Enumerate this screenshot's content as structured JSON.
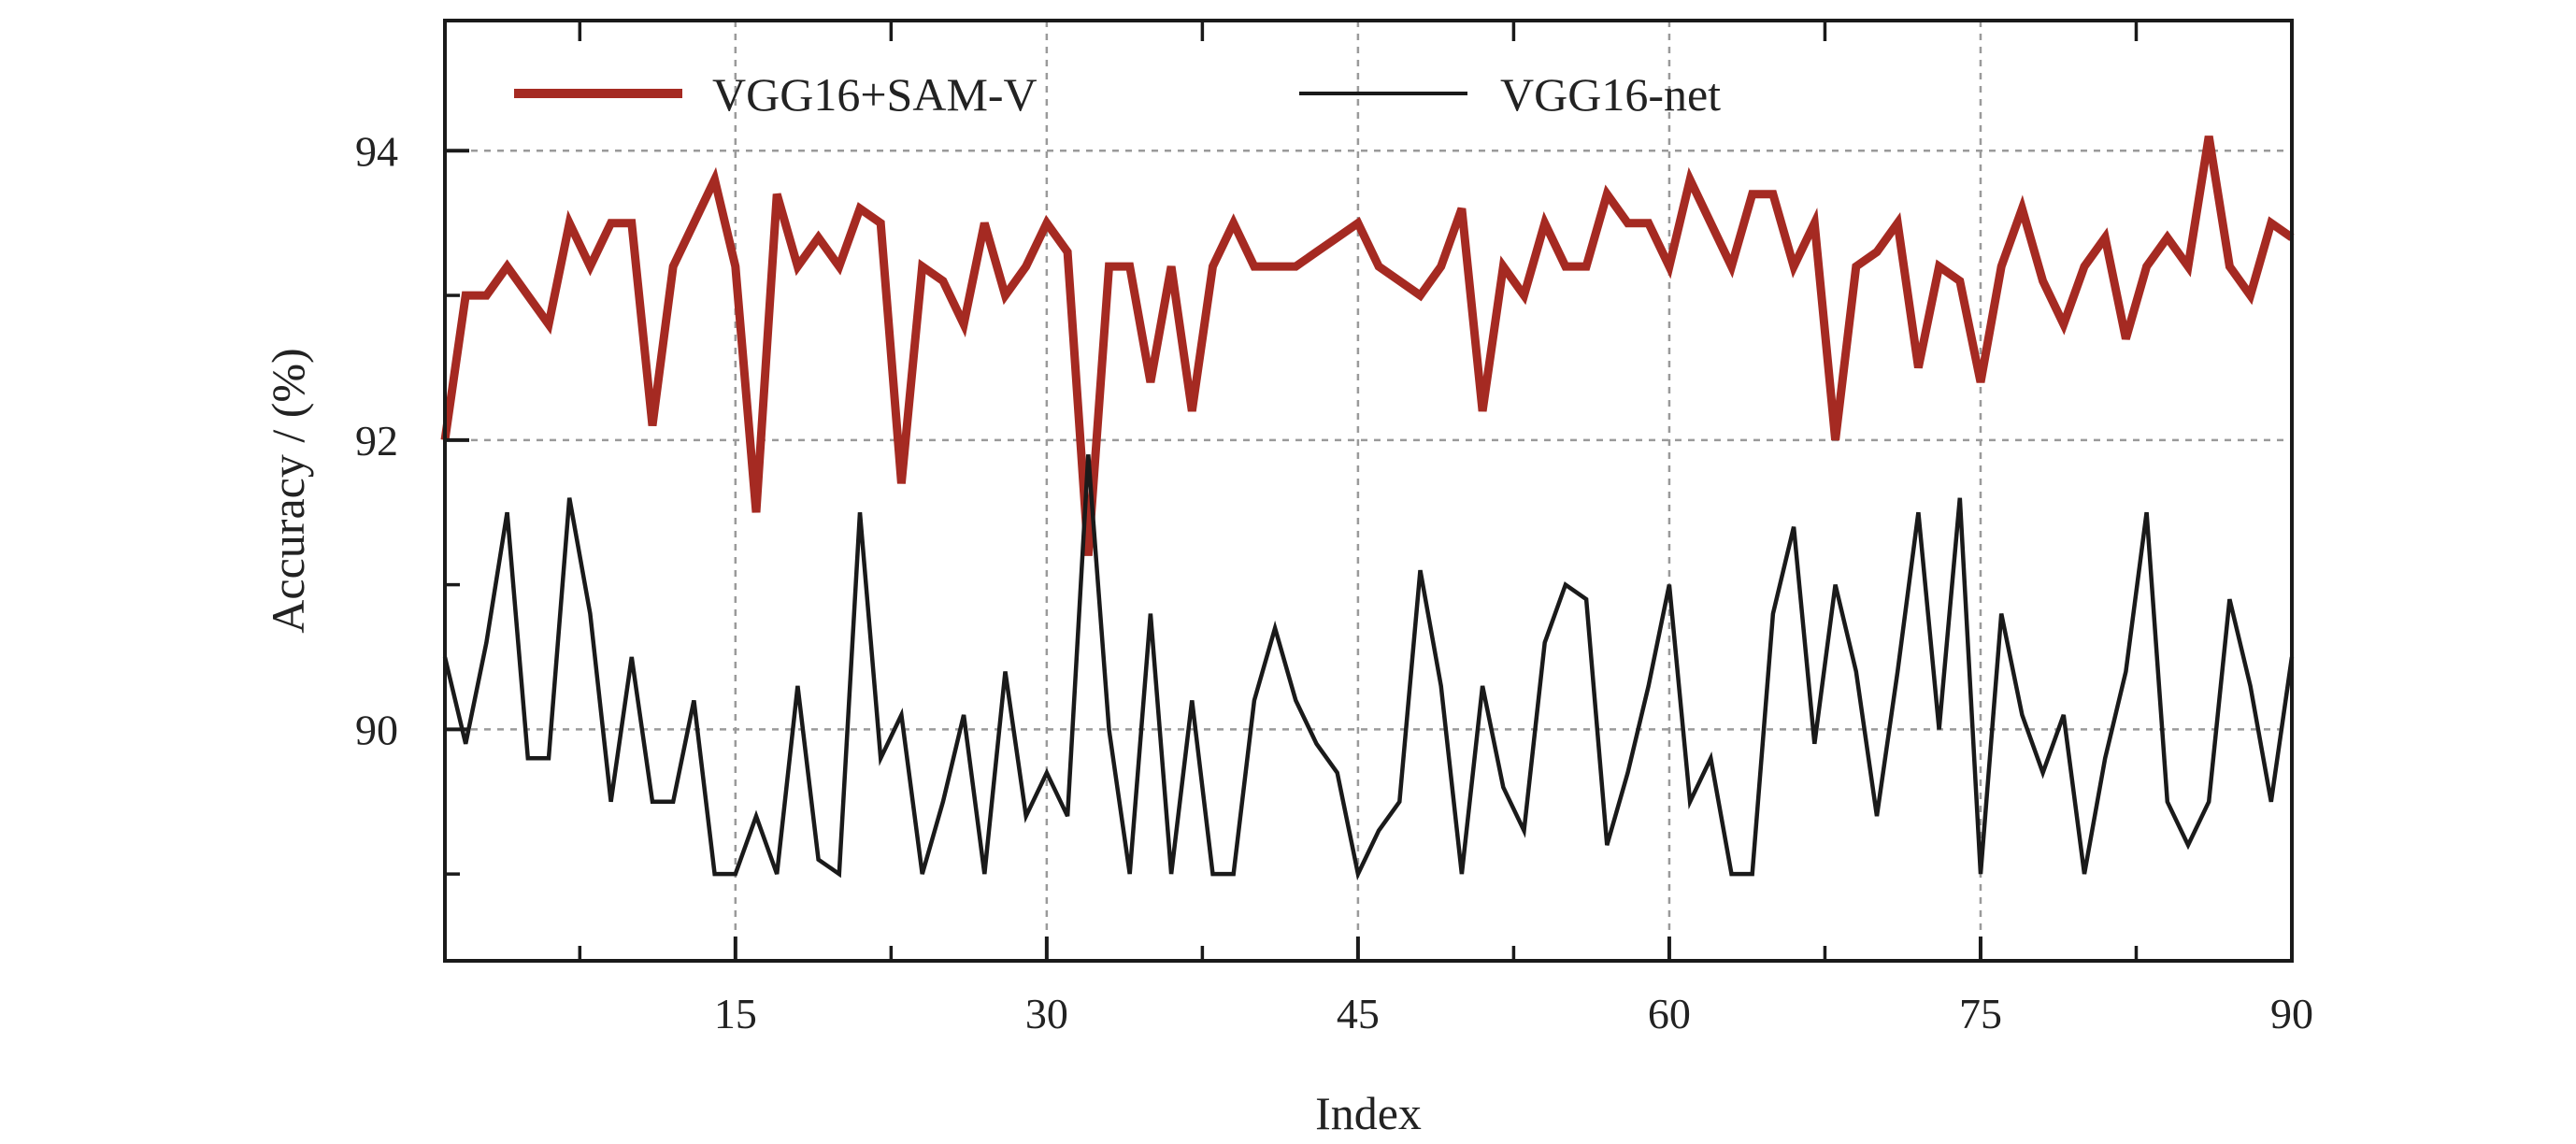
{
  "chart_data": {
    "type": "line",
    "xlabel": "Index",
    "ylabel": "Accuracy / (%)",
    "xlim": [
      1,
      90
    ],
    "ylim": [
      88.4,
      94.9
    ],
    "x_ticks": [
      15,
      30,
      45,
      60,
      75,
      90
    ],
    "x_tick_labels": [
      "15",
      "30",
      "45",
      "60",
      "75",
      "90"
    ],
    "y_ticks": [
      90,
      92,
      94
    ],
    "y_tick_labels": [
      "90",
      "92",
      "94"
    ],
    "grid": true,
    "legend_position": "top",
    "x": [
      1,
      2,
      3,
      4,
      5,
      6,
      7,
      8,
      9,
      10,
      11,
      12,
      13,
      14,
      15,
      16,
      17,
      18,
      19,
      20,
      21,
      22,
      23,
      24,
      25,
      26,
      27,
      28,
      29,
      30,
      31,
      32,
      33,
      34,
      35,
      36,
      37,
      38,
      39,
      40,
      41,
      42,
      43,
      44,
      45,
      46,
      47,
      48,
      49,
      50,
      51,
      52,
      53,
      54,
      55,
      56,
      57,
      58,
      59,
      60,
      61,
      62,
      63,
      64,
      65,
      66,
      67,
      68,
      69,
      70,
      71,
      72,
      73,
      74,
      75,
      76,
      77,
      78,
      79,
      80,
      81,
      82,
      83,
      84,
      85,
      86,
      87,
      88,
      89,
      90
    ],
    "series": [
      {
        "name": "VGG16+SAM-V",
        "color": "#a52a22",
        "values": [
          92.0,
          93.0,
          93.0,
          93.2,
          93.0,
          92.8,
          93.5,
          93.2,
          93.5,
          93.5,
          92.1,
          93.2,
          93.5,
          93.8,
          93.2,
          91.5,
          93.7,
          93.2,
          93.4,
          93.2,
          93.6,
          93.5,
          91.7,
          93.2,
          93.1,
          92.8,
          93.5,
          93.0,
          93.2,
          93.5,
          93.3,
          91.2,
          93.2,
          93.2,
          92.4,
          93.2,
          92.2,
          93.2,
          93.5,
          93.2,
          93.2,
          93.2,
          93.3,
          93.4,
          93.5,
          93.2,
          93.1,
          93.0,
          93.2,
          93.6,
          92.2,
          93.2,
          93.0,
          93.5,
          93.2,
          93.2,
          93.7,
          93.5,
          93.5,
          93.2,
          93.8,
          93.5,
          93.2,
          93.7,
          93.7,
          93.2,
          93.5,
          92.0,
          93.2,
          93.3,
          93.5,
          92.5,
          93.2,
          93.1,
          92.4,
          93.2,
          93.6,
          93.1,
          92.8,
          93.2,
          93.4,
          92.7,
          93.2,
          93.4,
          93.2,
          94.1,
          93.2,
          93.0,
          93.5,
          93.4
        ]
      },
      {
        "name": "VGG16-net",
        "color": "#1a1a1a",
        "values": [
          90.5,
          89.9,
          90.6,
          91.5,
          89.8,
          89.8,
          91.6,
          90.8,
          89.5,
          90.5,
          89.5,
          89.5,
          90.2,
          89.0,
          89.0,
          89.4,
          89.0,
          90.3,
          89.1,
          89.0,
          91.5,
          89.8,
          90.1,
          89.0,
          89.5,
          90.1,
          89.0,
          90.4,
          89.4,
          89.7,
          89.4,
          91.9,
          90.0,
          89.0,
          90.8,
          89.0,
          90.2,
          89.0,
          89.0,
          90.2,
          90.7,
          90.2,
          89.9,
          89.7,
          89.0,
          89.3,
          89.5,
          91.1,
          90.3,
          89.0,
          90.3,
          89.6,
          89.3,
          90.6,
          91.0,
          90.9,
          89.2,
          89.7,
          90.3,
          91.0,
          89.5,
          89.8,
          89.0,
          89.0,
          90.8,
          91.4,
          89.9,
          91.0,
          90.4,
          89.4,
          90.4,
          91.5,
          90.0,
          91.6,
          89.0,
          90.8,
          90.1,
          89.7,
          90.1,
          89.0,
          89.8,
          90.4,
          91.5,
          89.5,
          89.2,
          89.5,
          90.9,
          90.3,
          89.5,
          90.5
        ]
      }
    ]
  }
}
